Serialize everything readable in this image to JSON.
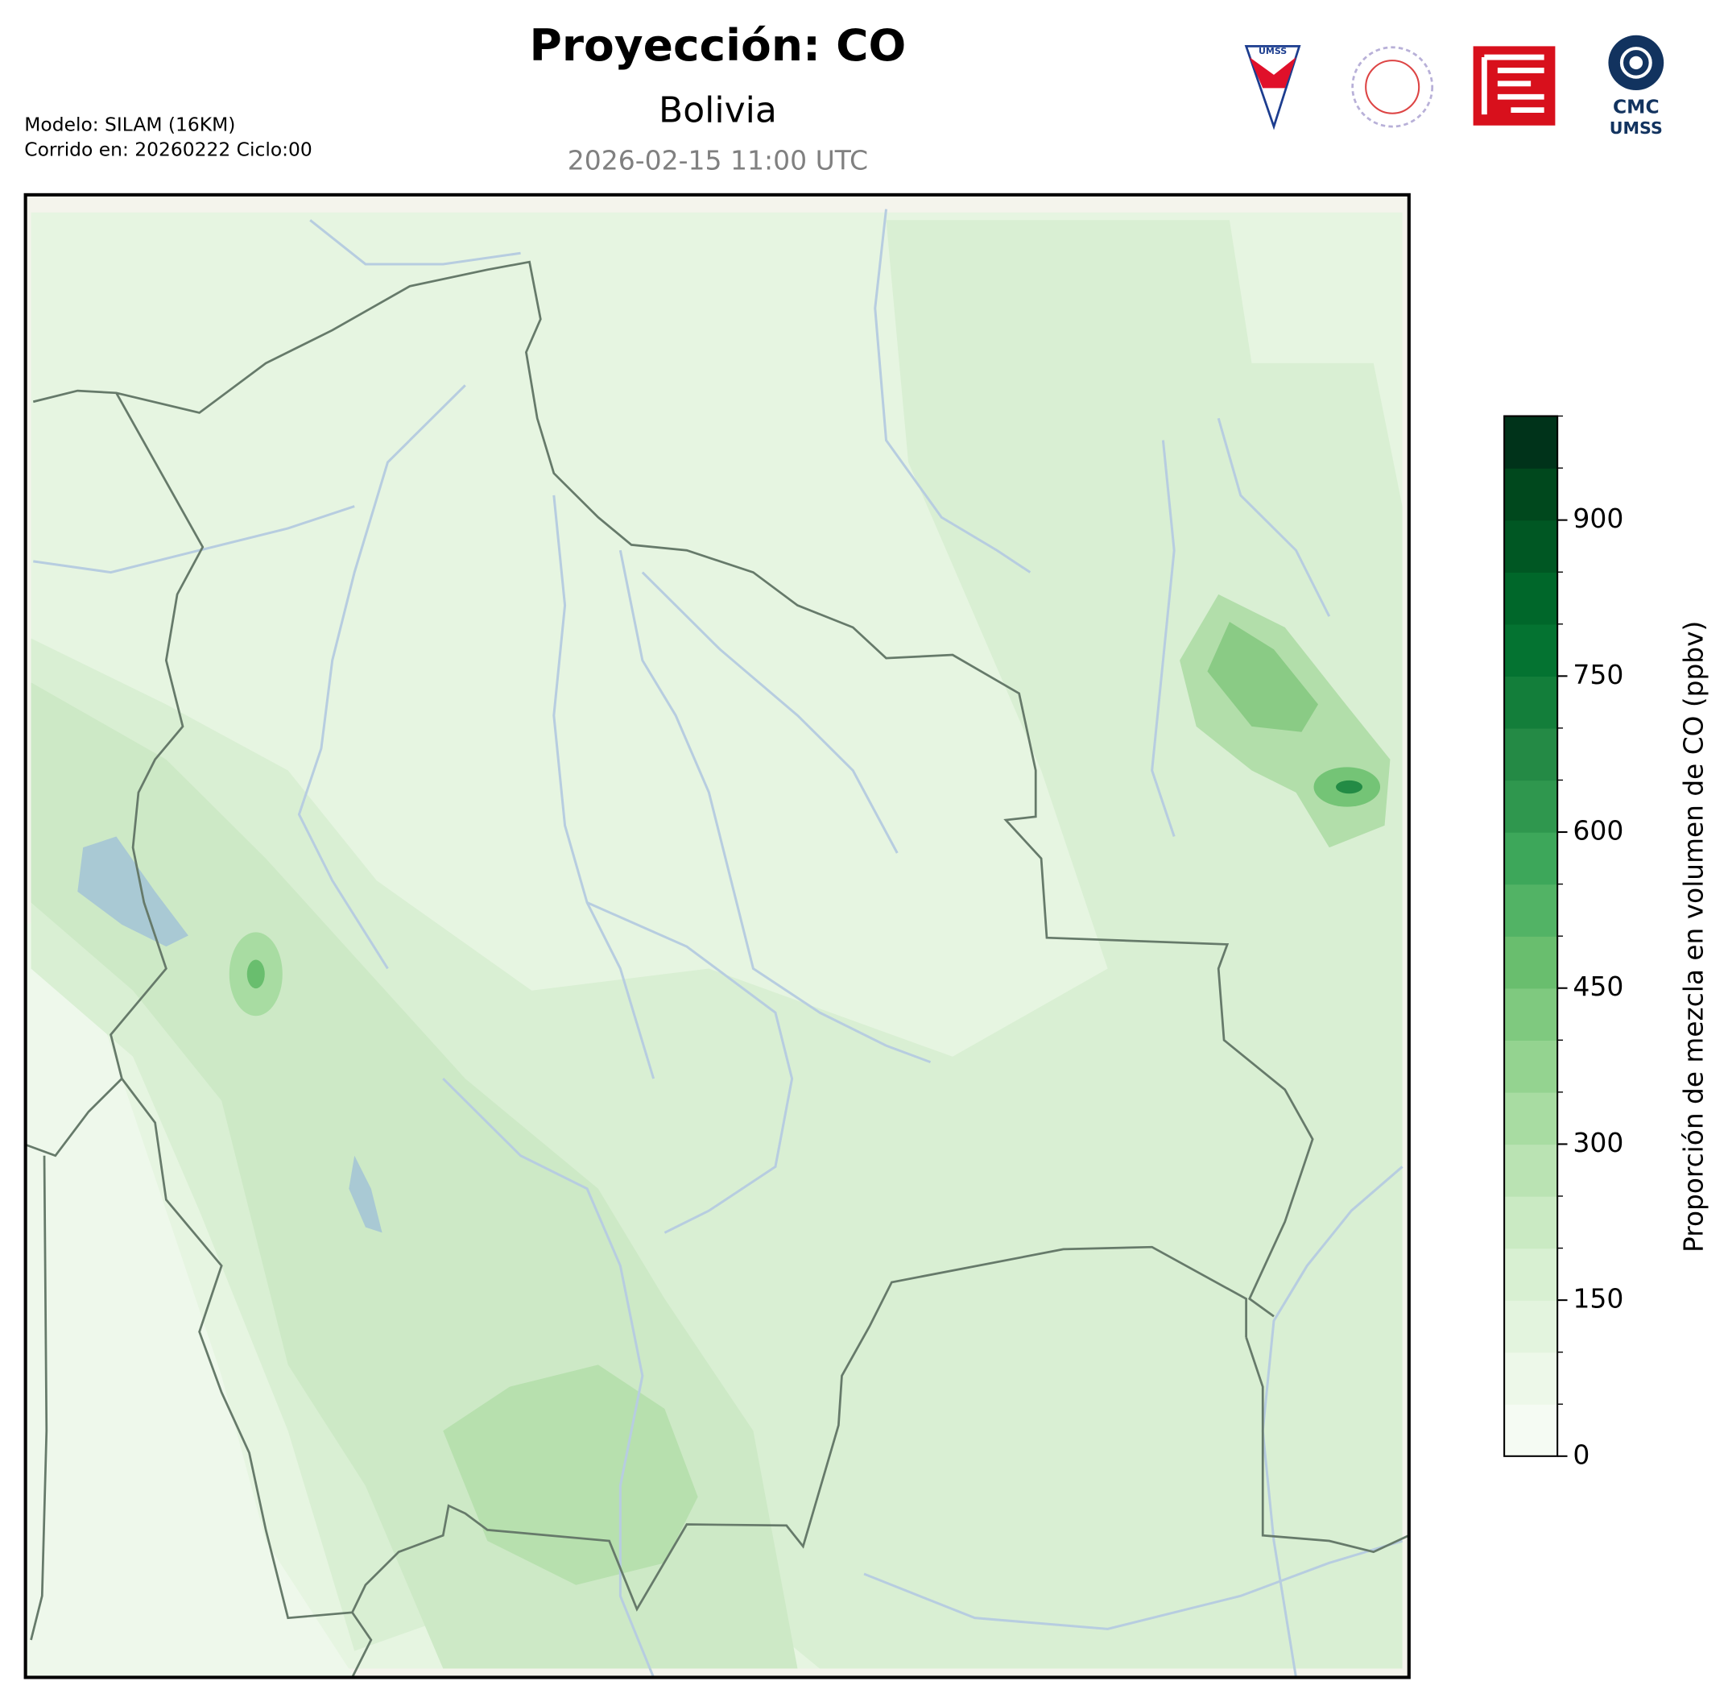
{
  "header": {
    "title": "Proyección: CO",
    "region": "Bolivia",
    "valid_time": "2026-02-15 11:00 UTC",
    "model": "Modelo: SILAM (16KM)",
    "run": "Corrido en: 20260222 Ciclo:00"
  },
  "logos": {
    "shield": "UMSS",
    "cmc": [
      "CMC",
      "UMSS"
    ]
  },
  "colorbar": {
    "label": "Proporción de mezcla en volumen de CO (ppbv)",
    "lim": [
      0,
      1000
    ],
    "ticks": [
      0,
      150,
      300,
      450,
      600,
      750,
      900
    ],
    "levels": [
      0,
      50,
      100,
      150,
      200,
      250,
      300,
      350,
      400,
      450,
      500,
      550,
      600,
      650,
      700,
      750,
      800,
      850,
      900,
      950,
      1000
    ],
    "colors": [
      "#f5fbf3",
      "#edf8e9",
      "#e3f4de",
      "#d8f0d2",
      "#caeac3",
      "#bae3b3",
      "#a8dca2",
      "#94d390",
      "#7fc97f",
      "#69be6e",
      "#52b365",
      "#3da75a",
      "#2f974e",
      "#248a45",
      "#137e3a",
      "#047331",
      "#00672a",
      "#005723",
      "#00481d",
      "#00331a"
    ]
  }
}
